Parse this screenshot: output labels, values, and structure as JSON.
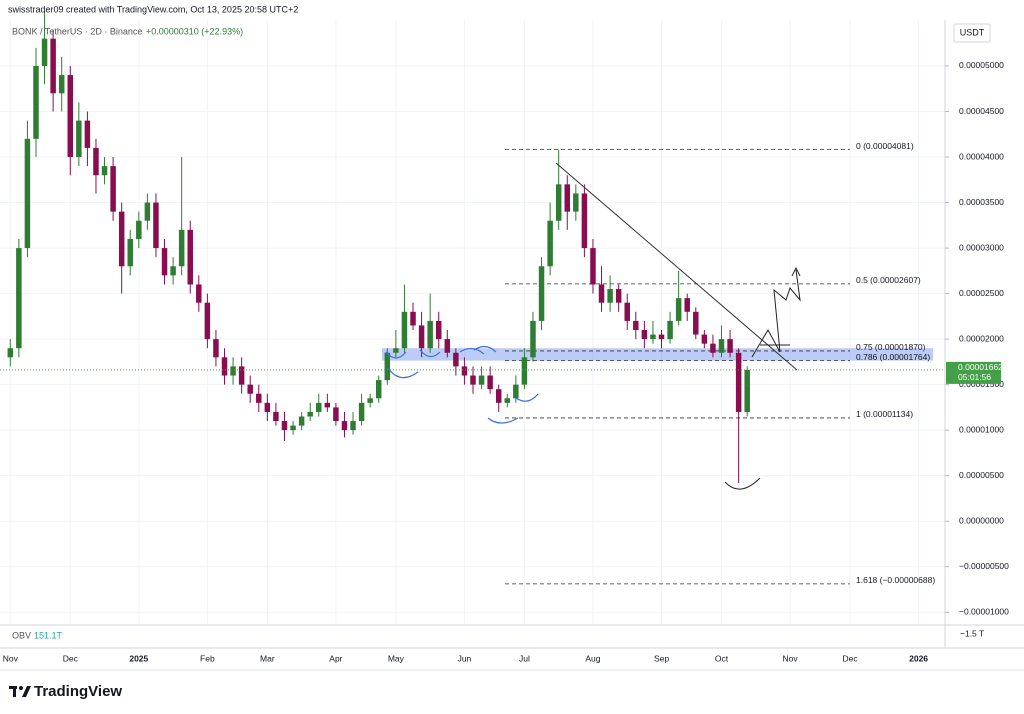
{
  "header": {
    "author_line": "swisstrader09 created with TradingView.com, Oct 13, 2025 20:58 UTC+2"
  },
  "chart_data": {
    "type": "candlestick",
    "title": "BONK / TetherUS · 2D · Binance",
    "change": "+0.00000310 (+22.93%)",
    "currency": "USDT",
    "categories": [
      "Nov",
      null,
      null,
      null,
      null,
      null,
      null,
      "Dec",
      null,
      null,
      null,
      null,
      null,
      null,
      null,
      "2025",
      null,
      null,
      null,
      null,
      null,
      null,
      null,
      "Feb",
      null,
      null,
      null,
      null,
      null,
      null,
      "Mar",
      null,
      null,
      null,
      null,
      null,
      null,
      null,
      "Apr",
      null,
      null,
      null,
      null,
      null,
      null,
      "May",
      null,
      null,
      null,
      null,
      null,
      null,
      null,
      "Jun",
      null,
      null,
      null,
      null,
      null,
      null,
      "Jul",
      null,
      null,
      null,
      null,
      null,
      null,
      null,
      "Aug",
      null,
      null,
      null,
      null,
      null,
      null,
      null,
      "Sep",
      null,
      null,
      null,
      null,
      null,
      null,
      "Oct",
      null,
      null,
      null,
      null,
      null,
      null,
      null,
      "Nov",
      null,
      null,
      null,
      null,
      null,
      null,
      "Dec",
      null,
      null,
      null,
      null,
      null,
      null,
      null,
      "2026",
      null,
      null
    ],
    "open": [
      1.8e-05,
      1.9e-05,
      3e-05,
      4.2e-05,
      5e-05,
      5.3e-05,
      4.7e-05,
      4.9e-05,
      4e-05,
      4.4e-05,
      4.1e-05,
      3.8e-05,
      3.9e-05,
      3.4e-05,
      2.8e-05,
      3.1e-05,
      3.3e-05,
      3.5e-05,
      3e-05,
      2.7e-05,
      2.8e-05,
      3.2e-05,
      2.6e-05,
      2.4e-05,
      2e-05,
      1.8e-05,
      1.6e-05,
      1.7e-05,
      1.5e-05,
      1.4e-05,
      1.3e-05,
      1.2e-05,
      1.1e-05,
      1e-05,
      1.05e-05,
      1.15e-05,
      1.2e-05,
      1.3e-05,
      1.25e-05,
      1.1e-05,
      1e-05,
      1.1e-05,
      1.3e-05,
      1.35e-05,
      1.55e-05,
      1.85e-05,
      1.9e-05,
      2.3e-05,
      2.15e-05,
      1.9e-05,
      2.2e-05,
      2e-05,
      1.85e-05,
      1.7e-05,
      1.6e-05,
      1.5e-05,
      1.6e-05,
      1.45e-05,
      1.3e-05,
      1.35e-05,
      1.5e-05,
      1.8e-05,
      2.2e-05,
      2.8e-05,
      3.3e-05,
      3.7e-05,
      3.4e-05,
      3.6e-05,
      3e-05,
      2.6e-05,
      2.4e-05,
      2.55e-05,
      2.4e-05,
      2.2e-05,
      2.1e-05,
      2e-05,
      2.05e-05,
      2e-05,
      2.2e-05,
      2.45e-05,
      2.3e-05,
      2.05e-05,
      1.95e-05,
      1.85e-05,
      2e-05,
      1.85e-05,
      1.2e-05,
      null,
      null,
      null,
      null,
      null,
      null,
      null,
      null,
      null,
      null,
      null,
      null,
      null,
      null,
      null,
      null,
      null,
      null,
      null,
      null,
      null,
      null
    ],
    "high": [
      2e-05,
      3.1e-05,
      4.4e-05,
      5.2e-05,
      5.6e-05,
      5.4e-05,
      5.1e-05,
      5e-05,
      4.6e-05,
      4.5e-05,
      4.2e-05,
      4e-05,
      4e-05,
      3.5e-05,
      3.2e-05,
      3.4e-05,
      3.6e-05,
      3.6e-05,
      3.1e-05,
      2.9e-05,
      4e-05,
      3.3e-05,
      2.7e-05,
      2.5e-05,
      2.1e-05,
      1.9e-05,
      1.8e-05,
      1.8e-05,
      1.6e-05,
      1.5e-05,
      1.4e-05,
      1.3e-05,
      1.2e-05,
      1.1e-05,
      1.2e-05,
      1.3e-05,
      1.4e-05,
      1.4e-05,
      1.3e-05,
      1.2e-05,
      1.2e-05,
      1.4e-05,
      1.4e-05,
      1.6e-05,
      1.9e-05,
      2.1e-05,
      2.6e-05,
      2.4e-05,
      2.3e-05,
      2.5e-05,
      2.3e-05,
      2.1e-05,
      1.9e-05,
      1.8e-05,
      1.7e-05,
      1.7e-05,
      1.7e-05,
      1.5e-05,
      1.4e-05,
      1.6e-05,
      1.9e-05,
      2.3e-05,
      2.9e-05,
      3.5e-05,
      4.08e-05,
      3.8e-05,
      3.7e-05,
      3.7e-05,
      3.1e-05,
      2.8e-05,
      2.7e-05,
      2.6e-05,
      2.5e-05,
      2.3e-05,
      2.2e-05,
      2.2e-05,
      2.1e-05,
      2.3e-05,
      2.75e-05,
      2.5e-05,
      2.35e-05,
      2.1e-05,
      2.05e-05,
      2.15e-05,
      2.1e-05,
      1.9e-05,
      1.7e-05,
      null,
      null,
      null,
      null,
      null,
      null,
      null,
      null,
      null,
      null,
      null,
      null,
      null,
      null,
      null,
      null,
      null,
      null,
      null,
      null,
      null,
      null
    ],
    "low": [
      1.7e-05,
      1.8e-05,
      2.9e-05,
      4e-05,
      4.8e-05,
      4.5e-05,
      4.5e-05,
      3.8e-05,
      3.9e-05,
      3.9e-05,
      3.6e-05,
      3.7e-05,
      3.3e-05,
      2.5e-05,
      2.7e-05,
      3e-05,
      3.2e-05,
      2.9e-05,
      2.6e-05,
      2.6e-05,
      2.7e-05,
      2.5e-05,
      2.3e-05,
      1.9e-05,
      1.7e-05,
      1.5e-05,
      1.5e-05,
      1.4e-05,
      1.3e-05,
      1.2e-05,
      1.1e-05,
      1.05e-05,
      8.8e-06,
      9.5e-06,
      1e-05,
      1.1e-05,
      1.15e-05,
      1.2e-05,
      1.05e-05,
      9.2e-06,
      9.5e-06,
      1.05e-05,
      1.25e-05,
      1.3e-05,
      1.5e-05,
      1.8e-05,
      1.85e-05,
      2.1e-05,
      1.8e-05,
      1.85e-05,
      1.9e-05,
      1.8e-05,
      1.6e-05,
      1.5e-05,
      1.4e-05,
      1.45e-05,
      1.4e-05,
      1.2e-05,
      1.25e-05,
      1.3e-05,
      1.45e-05,
      1.75e-05,
      2.1e-05,
      2.7e-05,
      3.2e-05,
      3.2e-05,
      3.3e-05,
      2.9e-05,
      2.5e-05,
      2.3e-05,
      2.3e-05,
      2.3e-05,
      2.1e-05,
      2e-05,
      1.9e-05,
      1.95e-05,
      1.9e-05,
      1.95e-05,
      2.15e-05,
      2.2e-05,
      2e-05,
      1.9e-05,
      1.8e-05,
      1.8e-05,
      1.8e-05,
      4.2e-06,
      1.15e-05,
      null,
      null,
      null,
      null,
      null,
      null,
      null,
      null,
      null,
      null,
      null,
      null,
      null,
      null,
      null,
      null,
      null,
      null,
      null,
      null,
      null,
      null
    ],
    "close": [
      1.9e-05,
      3e-05,
      4.2e-05,
      5e-05,
      5.3e-05,
      4.7e-05,
      4.9e-05,
      4e-05,
      4.4e-05,
      4.1e-05,
      3.8e-05,
      3.9e-05,
      3.4e-05,
      2.8e-05,
      3.1e-05,
      3.3e-05,
      3.5e-05,
      3e-05,
      2.7e-05,
      2.8e-05,
      3.2e-05,
      2.6e-05,
      2.4e-05,
      2e-05,
      1.8e-05,
      1.6e-05,
      1.7e-05,
      1.5e-05,
      1.4e-05,
      1.3e-05,
      1.2e-05,
      1.1e-05,
      1e-05,
      1.05e-05,
      1.15e-05,
      1.2e-05,
      1.3e-05,
      1.25e-05,
      1.1e-05,
      1e-05,
      1.1e-05,
      1.3e-05,
      1.35e-05,
      1.55e-05,
      1.85e-05,
      1.9e-05,
      2.3e-05,
      2.15e-05,
      1.9e-05,
      2.2e-05,
      2e-05,
      1.85e-05,
      1.7e-05,
      1.6e-05,
      1.5e-05,
      1.6e-05,
      1.45e-05,
      1.3e-05,
      1.35e-05,
      1.5e-05,
      1.8e-05,
      2.2e-05,
      2.8e-05,
      3.3e-05,
      3.7e-05,
      3.4e-05,
      3.6e-05,
      3e-05,
      2.6e-05,
      2.4e-05,
      2.55e-05,
      2.4e-05,
      2.2e-05,
      2.1e-05,
      2e-05,
      2.05e-05,
      2e-05,
      2.2e-05,
      2.45e-05,
      2.3e-05,
      2.05e-05,
      1.95e-05,
      1.85e-05,
      2e-05,
      1.85e-05,
      1.2e-05,
      1.662e-05,
      null,
      null,
      null,
      null,
      null,
      null,
      null,
      null,
      null,
      null,
      null,
      null,
      null,
      null,
      null,
      null,
      null,
      null,
      null,
      null,
      null,
      null
    ],
    "up_color": "#2e7d32",
    "down_color": "#880e4f",
    "ylim": [
      -1.14e-05,
      5.505e-05
    ],
    "yticks": [
      {
        "value": 5e-05,
        "label": "0.00005000"
      },
      {
        "value": 4.5e-05,
        "label": "0.00004500"
      },
      {
        "value": 4e-05,
        "label": "0.00004000"
      },
      {
        "value": 3.5e-05,
        "label": "0.00003500"
      },
      {
        "value": 3e-05,
        "label": "0.00003000"
      },
      {
        "value": 2.5e-05,
        "label": "0.00002500"
      },
      {
        "value": 2e-05,
        "label": "0.00002000"
      },
      {
        "value": 1.5e-05,
        "label": "0.00001500"
      },
      {
        "value": 1e-05,
        "label": "0.00001000"
      },
      {
        "value": 5e-06,
        "label": "0.00000500"
      },
      {
        "value": 0,
        "label": "0.00000000"
      },
      {
        "value": -5e-06,
        "label": "−0.00000500"
      },
      {
        "value": -1e-05,
        "label": "−0.00001000"
      }
    ],
    "grid": true,
    "last_price": {
      "value": 1.662e-05,
      "label": "0.00001662"
    },
    "countdown": "05:01:56",
    "fib_levels": [
      {
        "value": 4.081e-05,
        "label": "0 (0.00004081)"
      },
      {
        "value": 2.607e-05,
        "label": "0.5 (0.00002607)"
      },
      {
        "value": 1.87e-05,
        "label": "0.75 (0.00001870)"
      },
      {
        "value": 1.764e-05,
        "label": "0.786 (0.00001764)"
      },
      {
        "value": 1.134e-05,
        "label": "1 (0.00001134)"
      },
      {
        "value": -6.88e-06,
        "label": "1.618 (−0.00000688)"
      }
    ],
    "zone": [
      1.764e-05,
      1.9e-05
    ],
    "indicator": {
      "name": "OBV",
      "value": "151.1T",
      "axis_label": "−1.5 T"
    }
  },
  "footer": {
    "brand": "TradingView"
  }
}
